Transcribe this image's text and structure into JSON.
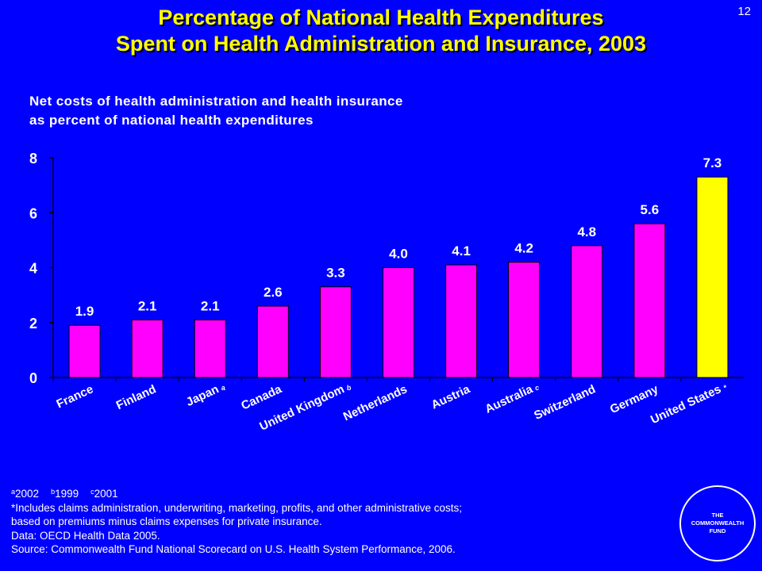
{
  "slide_number": "12",
  "title_line1": "Percentage of National Health Expenditures",
  "title_line2": "Spent on Health Administration and Insurance, 2003",
  "subtitle_line1": "Net costs of health administration and health insurance",
  "subtitle_line2": "as percent of national health expenditures",
  "chart_data": {
    "type": "bar",
    "categories": [
      "France",
      "Finland",
      "Japan",
      "Canada",
      "United Kingdom",
      "Netherlands",
      "Austria",
      "Australia",
      "Switzerland",
      "Germany",
      "United States"
    ],
    "category_superscripts": [
      "",
      "",
      "a",
      "",
      "b",
      "",
      "",
      "c",
      "",
      "",
      "*"
    ],
    "values": [
      1.9,
      2.1,
      2.1,
      2.6,
      3.3,
      4.0,
      4.1,
      4.2,
      4.8,
      5.6,
      7.3
    ],
    "value_labels": [
      "1.9",
      "2.1",
      "2.1",
      "2.6",
      "3.3",
      "4.0",
      "4.1",
      "4.2",
      "4.8",
      "5.6",
      "7.3"
    ],
    "y_ticks": [
      "0",
      "2",
      "4",
      "6",
      "8"
    ],
    "ylim": [
      0,
      8
    ],
    "grid": false,
    "bar_color": "#ff00ff",
    "highlight_index": 10,
    "highlight_color": "#ffff00"
  },
  "footnotes": {
    "notes": [
      {
        "sup": "a",
        "text": "2002"
      },
      {
        "sup": "b",
        "text": "1999"
      },
      {
        "sup": "c",
        "text": "2001"
      }
    ],
    "line2": "*Includes claims administration, underwriting, marketing, profits, and other administrative costs;",
    "line3": "based on premiums minus claims expenses for private insurance.",
    "line4": "Data: OECD Health Data 2005.",
    "line5": "Source: Commonwealth Fund National Scorecard on U.S. Health System Performance, 2006."
  },
  "logo_text": "THE\nCOMMONWEALTH\nFUND",
  "colors": {
    "background": "#0000ff",
    "title": "#ffff00",
    "text": "#ffffff"
  }
}
